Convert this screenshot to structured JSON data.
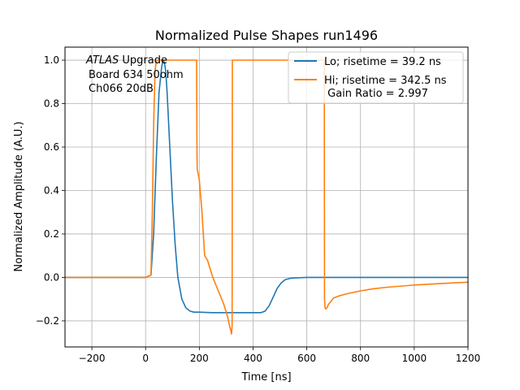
{
  "chart_data": {
    "type": "line",
    "title": "Normalized Pulse Shapes run1496",
    "xlabel": "Time [ns]",
    "ylabel": "Normalized Amplitude (A.U.)",
    "xlim": [
      -300,
      1200
    ],
    "ylim": [
      -0.32,
      1.06
    ],
    "xticks": [
      -200,
      0,
      200,
      400,
      600,
      800,
      1000,
      1200
    ],
    "yticks": [
      -0.2,
      0.0,
      0.2,
      0.4,
      0.6,
      0.8,
      1.0
    ],
    "xtick_labels": [
      "−200",
      "0",
      "200",
      "400",
      "600",
      "800",
      "1000",
      "1200"
    ],
    "ytick_labels": [
      "−0.2",
      "0.0",
      "0.2",
      "0.4",
      "0.6",
      "0.8",
      "1.0"
    ],
    "grid": true,
    "legend_position": "top-right",
    "annotation": {
      "line1_italic": "ATLAS",
      "line1_rest": " Upgrade",
      "line2": "Board 634 50ohm",
      "line3": "Ch066 20dB"
    },
    "series": [
      {
        "name": "Lo; risetime = 39.2 ns",
        "color": "#1f77b4",
        "x": [
          -300,
          0,
          20,
          30,
          40,
          50,
          60,
          65,
          70,
          75,
          80,
          90,
          100,
          110,
          120,
          135,
          150,
          165,
          180,
          190,
          200,
          250,
          300,
          350,
          400,
          430,
          445,
          460,
          475,
          490,
          505,
          520,
          540,
          560,
          600,
          700,
          800,
          900,
          1000,
          1100,
          1200
        ],
        "y": [
          0.0,
          0.0,
          0.01,
          0.2,
          0.55,
          0.85,
          0.97,
          1.0,
          0.99,
          0.95,
          0.85,
          0.6,
          0.35,
          0.15,
          0.0,
          -0.1,
          -0.14,
          -0.155,
          -0.16,
          -0.16,
          -0.16,
          -0.162,
          -0.162,
          -0.162,
          -0.162,
          -0.162,
          -0.155,
          -0.13,
          -0.09,
          -0.05,
          -0.025,
          -0.01,
          -0.004,
          -0.002,
          0.0,
          0.0,
          0.0,
          0.0,
          0.0,
          0.0,
          0.0
        ]
      },
      {
        "name": "Hi; risetime = 342.5 ns",
        "color": "#ff7f0e",
        "x": [
          -300,
          0,
          20,
          25,
          30,
          35,
          40,
          45,
          190,
          191,
          192,
          200,
          210,
          220,
          230,
          250,
          270,
          290,
          305,
          312,
          318,
          320,
          322,
          323,
          665,
          666,
          668,
          670,
          675,
          680,
          690,
          700,
          720,
          750,
          800,
          850,
          900,
          1000,
          1100,
          1200
        ],
        "y": [
          0.0,
          0.0,
          0.01,
          0.3,
          0.7,
          0.95,
          1.0,
          1.0,
          1.0,
          0.6,
          0.5,
          0.45,
          0.3,
          0.1,
          0.08,
          0.0,
          -0.06,
          -0.12,
          -0.18,
          -0.22,
          -0.25,
          -0.26,
          -0.22,
          1.0,
          1.0,
          -0.1,
          -0.14,
          -0.145,
          -0.14,
          -0.125,
          -0.11,
          -0.095,
          -0.085,
          -0.075,
          -0.062,
          -0.052,
          -0.045,
          -0.035,
          -0.028,
          -0.022
        ]
      }
    ],
    "gain_ratio_label": " Gain Ratio = 2.997"
  }
}
